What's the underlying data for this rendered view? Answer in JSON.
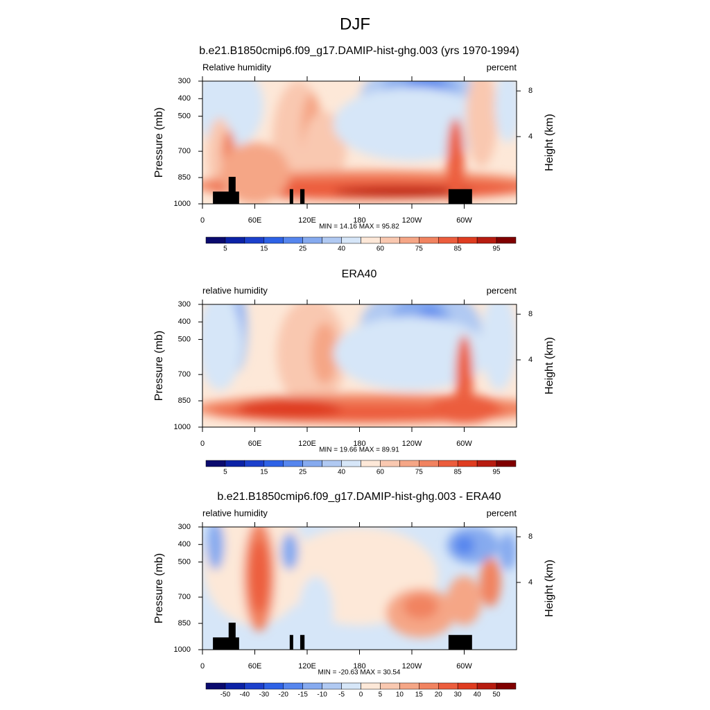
{
  "title": "DJF",
  "panels": [
    {
      "title": "b.e21.B1850cmip6.f09_g17.DAMIP-hist-ghg.003 (yrs 1970-1994)",
      "left_label": "Relative humidity",
      "right_label": "percent",
      "ylabel": "Pressure (mb)",
      "y2label": "Height (km)",
      "xlim": [
        0,
        360
      ],
      "ylim": [
        1000,
        300
      ],
      "xticks": [
        0,
        {
          "value": 60,
          "label": "60E"
        },
        {
          "value": 120,
          "label": "120E"
        },
        180,
        {
          "value": 240,
          "label": "120W"
        },
        {
          "value": 300,
          "label": "60W"
        }
      ],
      "yticks": [
        300,
        400,
        500,
        700,
        850,
        1000
      ],
      "y2ticks": [
        8,
        4
      ],
      "stats": "MIN =  14.16  MAX =  95.82",
      "colorbar": {
        "labels": [
          5,
          15,
          25,
          40,
          60,
          75,
          85,
          95
        ]
      }
    },
    {
      "title": "ERA40",
      "left_label": "relative humidity",
      "right_label": "percent",
      "ylabel": "Pressure (mb)",
      "y2label": "Height (km)",
      "xlim": [
        0,
        360
      ],
      "ylim": [
        1000,
        300
      ],
      "xticks": [
        0,
        {
          "value": 60,
          "label": "60E"
        },
        {
          "value": 120,
          "label": "120E"
        },
        180,
        {
          "value": 240,
          "label": "120W"
        },
        {
          "value": 300,
          "label": "60W"
        }
      ],
      "yticks": [
        300,
        400,
        500,
        700,
        850,
        1000
      ],
      "y2ticks": [
        8,
        4
      ],
      "stats": "MIN =  19.66  MAX =  89.91",
      "colorbar": {
        "labels": [
          5,
          15,
          25,
          40,
          60,
          75,
          85,
          95
        ]
      }
    },
    {
      "title": "b.e21.B1850cmip6.f09_g17.DAMIP-hist-ghg.003 - ERA40",
      "left_label": "relative humidity",
      "right_label": "percent",
      "ylabel": "Pressure (mb)",
      "y2label": "Height (km)",
      "xlim": [
        0,
        360
      ],
      "ylim": [
        1000,
        300
      ],
      "xticks": [
        0,
        {
          "value": 60,
          "label": "60E"
        },
        {
          "value": 120,
          "label": "120E"
        },
        180,
        {
          "value": 240,
          "label": "120W"
        },
        {
          "value": 300,
          "label": "60W"
        }
      ],
      "yticks": [
        300,
        400,
        500,
        700,
        850,
        1000
      ],
      "y2ticks": [
        8,
        4
      ],
      "stats": "MIN = -20.63  MAX =  30.54",
      "colorbar": {
        "labels": [
          -50,
          -40,
          -30,
          -20,
          -15,
          -10,
          -5,
          0,
          5,
          10,
          15,
          20,
          30,
          40,
          50
        ]
      }
    }
  ],
  "colors": [
    "#0a0a6e",
    "#0c22a6",
    "#1c40cc",
    "#2e62e6",
    "#5686ee",
    "#86aaef",
    "#b0c9f2",
    "#d6e6f8",
    "#fde8d8",
    "#f9c8b0",
    "#f5a686",
    "#f18360",
    "#ec5d3d",
    "#df3c20",
    "#b71c10",
    "#800000"
  ]
}
